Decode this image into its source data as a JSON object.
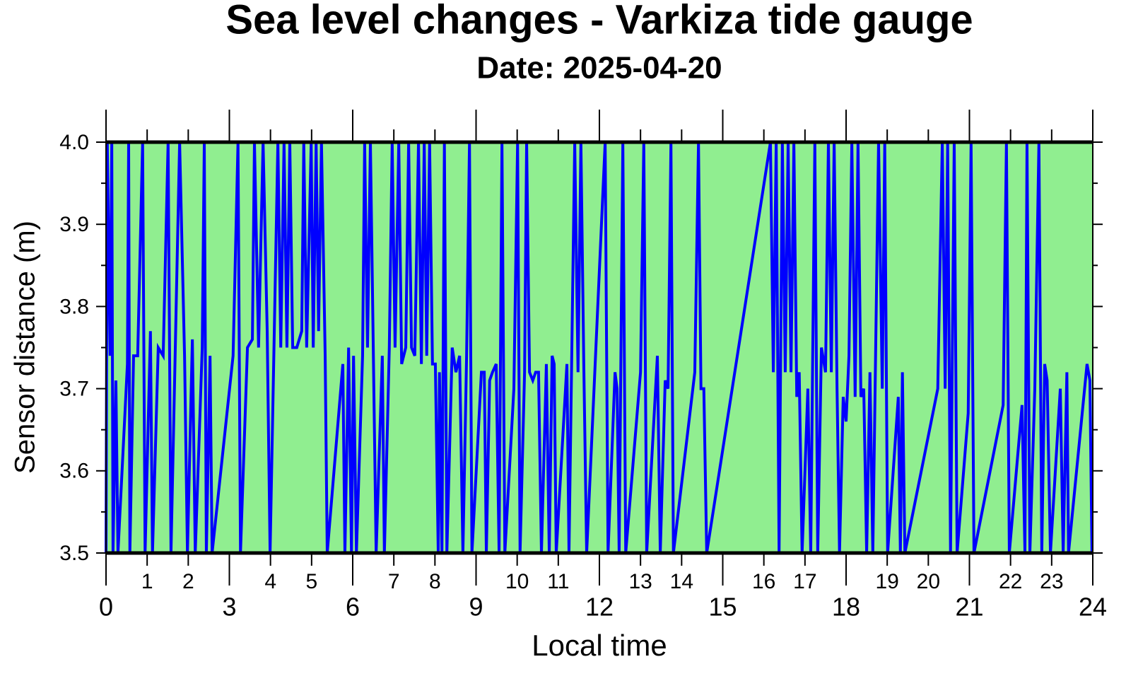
{
  "chart_data": {
    "type": "line",
    "title": "Sea level changes - Varkiza tide gauge",
    "subtitle": "Date: 2025-04-20",
    "xlabel": "Local time",
    "ylabel": "Sensor distance (m)",
    "xlim": [
      0,
      24
    ],
    "ylim": [
      3.5,
      4.0
    ],
    "xticks": [
      0,
      3,
      6,
      9,
      12,
      15,
      18,
      21,
      24
    ],
    "xticks_minor": [
      1,
      2,
      4,
      5,
      7,
      8,
      10,
      11,
      13,
      14,
      16,
      17,
      19,
      20,
      22,
      23
    ],
    "yticks": [
      {
        "value": 3.5,
        "label": "3.5"
      },
      3.6,
      3.7,
      3.8,
      3.9,
      {
        "value": 4.0,
        "label": "4.0"
      }
    ],
    "yticks_minor": [
      3.55,
      3.65,
      3.75,
      3.85,
      3.95
    ],
    "background": "#90ee90",
    "series": [
      {
        "name": "Sensor distance",
        "color": "#0000ff",
        "x": [
          0,
          0.03,
          0.1,
          0.14,
          0.17,
          0.24,
          0.29,
          0.52,
          0.55,
          0.58,
          0.67,
          0.77,
          0.89,
          0.95,
          1.08,
          1.13,
          1.27,
          1.39,
          1.51,
          1.58,
          1.79,
          1.91,
          1.98,
          2.1,
          2.17,
          2.34,
          2.39,
          2.44,
          2.53,
          2.58,
          3.09,
          3.21,
          3.27,
          3.44,
          3.56,
          3.61,
          3.71,
          3.82,
          3.92,
          3.99,
          4.18,
          4.25,
          4.33,
          4.4,
          4.47,
          4.54,
          4.64,
          4.76,
          4.81,
          4.88,
          4.99,
          5.04,
          5.11,
          5.17,
          5.24,
          5.33,
          5.38,
          5.76,
          5.81,
          5.9,
          5.97,
          6.02,
          6.09,
          6.24,
          6.29,
          6.36,
          6.43,
          6.5,
          6.57,
          6.72,
          6.77,
          6.89,
          6.96,
          7.03,
          7.12,
          7.19,
          7.29,
          7.36,
          7.43,
          7.51,
          7.6,
          7.67,
          7.74,
          7.8,
          7.87,
          7.94,
          8.01,
          8.08,
          8.11,
          8.17,
          8.23,
          8.29,
          8.42,
          8.51,
          8.6,
          8.68,
          8.77,
          8.84,
          8.9,
          9.13,
          9.2,
          9.25,
          9.33,
          9.4,
          9.49,
          9.56,
          9.63,
          9.7,
          9.92,
          10.01,
          10.07,
          10.18,
          10.23,
          10.3,
          10.38,
          10.45,
          10.52,
          10.59,
          10.71,
          10.78,
          10.85,
          10.9,
          10.95,
          11.21,
          11.26,
          11.4,
          11.48,
          11.55,
          11.62,
          11.69,
          12.14,
          12.21,
          12.38,
          12.43,
          12.48,
          12.57,
          12.64,
          13.0,
          13.08,
          13.15,
          13.41,
          13.48,
          13.6,
          13.67,
          13.74,
          13.8,
          14.32,
          14.41,
          14.47,
          14.54,
          14.61,
          16.16,
          16.23,
          16.3,
          16.37,
          16.45,
          16.52,
          16.59,
          16.66,
          16.73,
          16.8,
          16.86,
          16.93,
          17.07,
          17.14,
          17.24,
          17.31,
          17.4,
          17.5,
          17.57,
          17.64,
          17.71,
          17.78,
          17.84,
          17.93,
          18.0,
          18.07,
          18.14,
          18.22,
          18.29,
          18.36,
          18.43,
          18.5,
          18.58,
          18.65,
          18.79,
          18.88,
          18.94,
          19.01,
          19.27,
          19.32,
          19.37,
          19.43,
          20.15,
          20.23,
          20.34,
          20.41,
          20.47,
          20.54,
          20.63,
          20.7,
          20.97,
          21.04,
          21.11,
          21.82,
          21.9,
          21.97,
          22.28,
          22.35,
          22.4,
          22.47,
          22.59,
          22.69,
          22.76,
          22.83,
          22.89,
          22.97,
          23.21,
          23.28,
          23.37,
          23.41,
          23.86,
          23.93,
          23.98
        ],
        "values": [
          3.5,
          4.0,
          3.74,
          4.0,
          3.5,
          3.71,
          3.5,
          3.73,
          4.0,
          3.5,
          3.74,
          3.74,
          4.0,
          3.5,
          3.77,
          3.5,
          3.75,
          3.74,
          4.0,
          3.5,
          4.0,
          3.74,
          3.5,
          3.76,
          3.5,
          3.75,
          4.0,
          3.5,
          3.74,
          3.5,
          3.74,
          4.0,
          3.5,
          3.75,
          3.76,
          4.0,
          3.75,
          4.0,
          3.77,
          3.5,
          4.0,
          3.75,
          4.0,
          3.75,
          4.0,
          3.75,
          3.75,
          3.77,
          4.0,
          3.75,
          4.0,
          3.75,
          4.0,
          3.77,
          4.0,
          3.74,
          3.5,
          3.73,
          3.5,
          3.75,
          3.5,
          3.74,
          3.5,
          3.74,
          4.0,
          3.75,
          4.0,
          3.75,
          3.5,
          3.74,
          3.5,
          3.75,
          4.0,
          3.75,
          4.0,
          3.73,
          3.75,
          4.0,
          3.75,
          3.74,
          4.0,
          3.73,
          4.0,
          3.74,
          4.0,
          3.73,
          3.73,
          3.5,
          3.72,
          3.5,
          4.0,
          3.5,
          3.75,
          3.72,
          3.74,
          3.5,
          3.74,
          4.0,
          3.5,
          3.72,
          3.72,
          3.5,
          3.71,
          3.72,
          3.73,
          3.5,
          4.0,
          3.5,
          3.7,
          4.0,
          3.5,
          3.72,
          4.0,
          3.72,
          3.71,
          3.72,
          3.72,
          3.5,
          3.73,
          3.5,
          3.74,
          3.73,
          3.5,
          3.73,
          3.5,
          4.0,
          3.72,
          4.0,
          3.73,
          3.5,
          4.0,
          3.5,
          3.72,
          3.7,
          3.5,
          4.0,
          3.5,
          3.72,
          4.0,
          3.5,
          3.74,
          3.5,
          3.71,
          3.7,
          4.0,
          3.5,
          3.72,
          4.0,
          3.7,
          3.7,
          3.5,
          4.0,
          3.72,
          4.0,
          3.5,
          4.0,
          3.72,
          4.0,
          3.72,
          4.0,
          3.69,
          3.72,
          3.5,
          3.7,
          3.5,
          4.0,
          3.5,
          3.75,
          3.72,
          4.0,
          3.72,
          4.0,
          3.7,
          3.5,
          3.69,
          3.66,
          3.74,
          4.0,
          3.69,
          4.0,
          3.69,
          3.7,
          3.5,
          3.72,
          3.5,
          4.0,
          3.7,
          4.0,
          3.5,
          3.69,
          3.5,
          3.72,
          3.5,
          3.68,
          3.7,
          4.0,
          3.7,
          4.0,
          3.5,
          4.0,
          3.5,
          3.67,
          4.0,
          3.5,
          3.68,
          4.0,
          3.5,
          3.68,
          3.5,
          4.0,
          3.5,
          3.7,
          4.0,
          3.5,
          3.73,
          3.71,
          3.5,
          3.7,
          3.5,
          3.72,
          3.5,
          3.73,
          3.71,
          3.5
        ]
      }
    ]
  }
}
